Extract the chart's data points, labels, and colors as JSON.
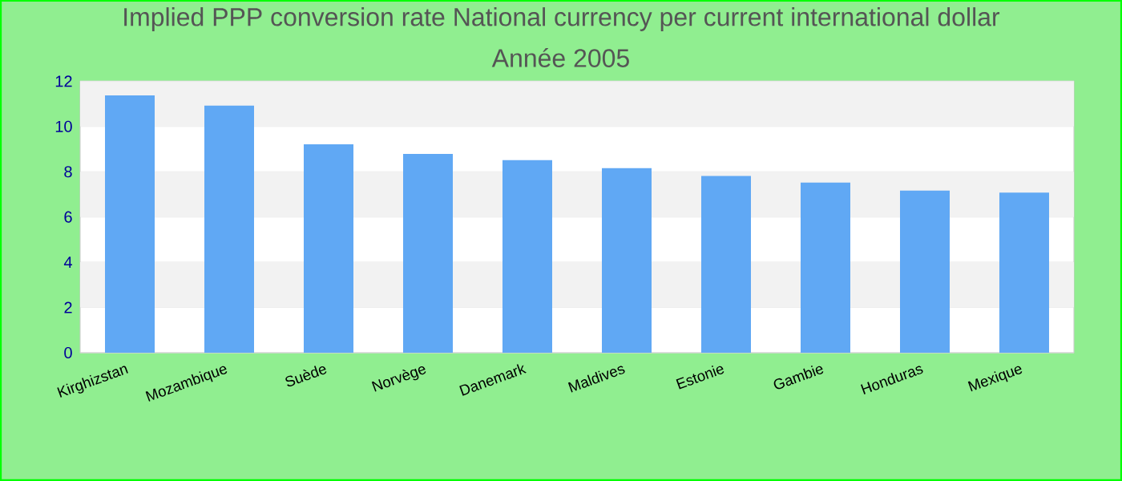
{
  "chart_data": {
    "type": "bar",
    "title": "Implied PPP conversion rate  National currency per current international dollar",
    "subtitle": "Année 2005",
    "categories": [
      "Kirghizstan",
      "Mozambique",
      "Suède",
      "Norvège",
      "Danemark",
      "Maldives",
      "Estonie",
      "Gambie",
      "Honduras",
      "Mexique"
    ],
    "values": [
      11.37,
      10.92,
      9.21,
      8.79,
      8.51,
      8.16,
      7.81,
      7.52,
      7.17,
      7.08
    ],
    "color": "#60a8f4",
    "ylim": [
      0,
      12
    ],
    "yticks": [
      0,
      2,
      4,
      6,
      8,
      10,
      12
    ],
    "grid": "y"
  }
}
